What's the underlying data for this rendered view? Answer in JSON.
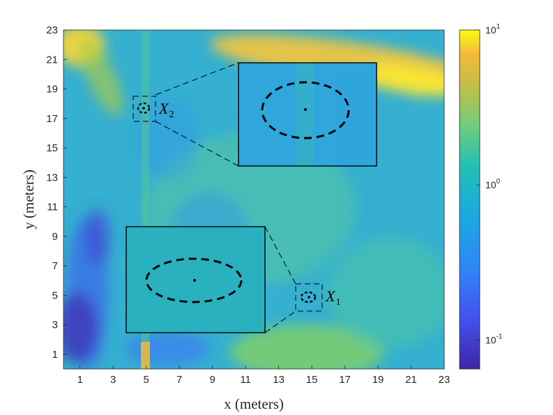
{
  "chart_data": {
    "type": "heatmap",
    "title": "",
    "xlabel": "x (meters)",
    "ylabel": "y (meters)",
    "xlim": [
      0,
      23
    ],
    "ylim": [
      0,
      23
    ],
    "xticks": [
      "1",
      "3",
      "5",
      "7",
      "9",
      "11",
      "13",
      "15",
      "17",
      "19",
      "21",
      "23"
    ],
    "yticks": [
      "1",
      "3",
      "5",
      "7",
      "9",
      "11",
      "13",
      "15",
      "17",
      "19",
      "21",
      "23"
    ],
    "colorbar": {
      "scale": "log",
      "colormap": "parula",
      "range": [
        0.065,
        10
      ],
      "ticks": [
        {
          "base": "10",
          "exp": "1",
          "value": 10
        },
        {
          "base": "10",
          "exp": "0",
          "value": 1
        },
        {
          "base": "10",
          "exp": "-1",
          "value": 0.1
        }
      ]
    },
    "markers": [
      {
        "name": "X",
        "subscript": "1",
        "x": 14.7,
        "y": 5.1
      },
      {
        "name": "X",
        "subscript": "2",
        "x": 5.0,
        "y": 17.9
      }
    ],
    "insets": [
      {
        "of": "X_2",
        "position": "upper-right",
        "x_range": [
          10.7,
          19.2
        ],
        "y_range": [
          14.0,
          21.1
        ]
      },
      {
        "of": "X_1",
        "position": "lower-left",
        "x_range": [
          3.9,
          12.3
        ],
        "y_range": [
          2.6,
          9.9
        ]
      }
    ],
    "grid": false
  },
  "colors": {
    "low": "#3e26a8",
    "mid": "#23b9c8",
    "high": "#f9fb15",
    "background": "#ffffff",
    "axis": "#262626"
  }
}
